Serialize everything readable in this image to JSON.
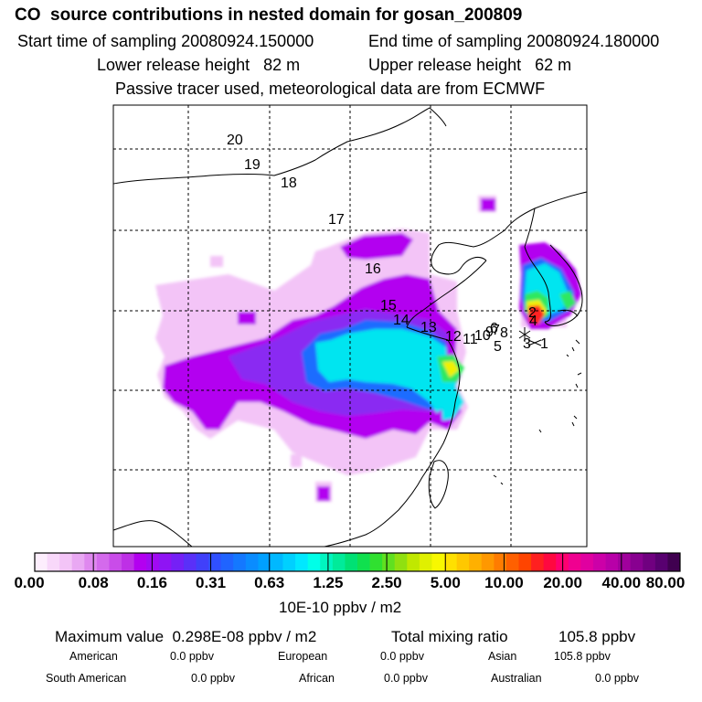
{
  "header": {
    "title": "CO  source contributions in nested domain for gosan_200809",
    "start_label": "Start time of sampling 20080924.150000",
    "end_label": "End time of sampling 20080924.180000",
    "lower_label": "Lower release height   82 m",
    "upper_label": "Upper release height   62 m",
    "note": "Passive tracer used, meteorological data are from ECMWF"
  },
  "map": {
    "trajectory_labels": [
      "20",
      "19",
      "18",
      "17",
      "16",
      "15",
      "14",
      "13",
      "12",
      "11",
      "10",
      "9",
      "8",
      "7",
      "6",
      "5",
      "4",
      "3",
      "2",
      "1"
    ],
    "colors": {
      "coast": "#000000",
      "grid": "#000000",
      "plume_light": "#f3c4f7",
      "plume_purple": "#b300f0",
      "plume_violet": "#8a2cf2",
      "plume_blue": "#1c6cff",
      "plume_cyan": "#00e5f0",
      "plume_green": "#2fe860",
      "plume_yellow": "#f0f000",
      "plume_red": "#ff2020"
    }
  },
  "colorbar": {
    "ticks": [
      "0.00",
      "0.08",
      "0.16",
      "0.31",
      "0.63",
      "1.25",
      "2.50",
      "5.00",
      "10.00",
      "20.00",
      "40.00",
      "80.00"
    ],
    "colors": [
      "#fdeefd",
      "#f8d8fa",
      "#f3c4f7",
      "#e9a8f3",
      "#df88ef",
      "#d46aec",
      "#c94ce9",
      "#be30e6",
      "#b300f0",
      "#a10af2",
      "#8f14f4",
      "#7520f6",
      "#5a30f8",
      "#4040fa",
      "#3050ff",
      "#2064ff",
      "#1478ff",
      "#0a8cff",
      "#00a0ff",
      "#00b8ff",
      "#00d0ff",
      "#00e8ff",
      "#00ffe8",
      "#00f5c0",
      "#00eb9a",
      "#00e174",
      "#10e04e",
      "#30e030",
      "#60e020",
      "#90e010",
      "#c0e800",
      "#e0f000",
      "#f8f800",
      "#ffe000",
      "#ffc800",
      "#ffb000",
      "#ff9800",
      "#ff7c00",
      "#ff6000",
      "#ff4400",
      "#ff2020",
      "#ff0840",
      "#ff0070",
      "#f00090",
      "#e000a0",
      "#cc00a8",
      "#b800a8",
      "#a0009c",
      "#880090",
      "#700080",
      "#580070",
      "#400050"
    ],
    "unit": "10E-10 ppbv / m2"
  },
  "summary": {
    "max_label": "Maximum value  0.298E-08 ppbv / m2",
    "total_label": "Total mixing ratio",
    "total_value": "105.8 ppbv"
  },
  "stats": [
    {
      "name": "American",
      "value": "0.0 ppbv"
    },
    {
      "name": "European",
      "value": "0.0 ppbv"
    },
    {
      "name": "Asian",
      "value": "105.8 ppbv"
    },
    {
      "name": "South American",
      "value": "0.0 ppbv"
    },
    {
      "name": "African",
      "value": "0.0 ppbv"
    },
    {
      "name": "Australian",
      "value": "0.0 ppbv"
    }
  ]
}
